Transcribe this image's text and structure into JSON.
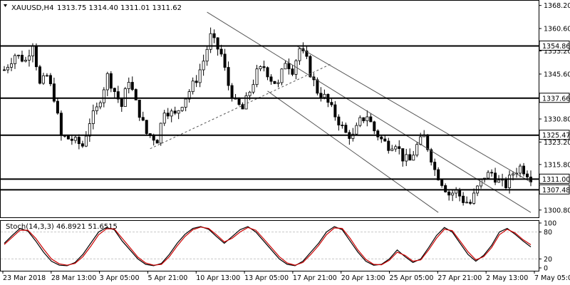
{
  "header": {
    "symbol_timeframe": "XAUUSD,H4",
    "ohlc_values": "1313.75 1314.40 1311.01 1311.62"
  },
  "chart_data": [
    {
      "type": "candlestick",
      "title": "XAUUSD,H4",
      "ylim": [
        1298.4,
        1370.0
      ],
      "y_ticks": [
        "1368.20",
        "1360.60",
        "1353.20",
        "1345.60",
        "1338.20",
        "1330.80",
        "1323.20",
        "1315.80",
        "1300.80"
      ],
      "x_ticks": [
        "23 Mar 2018",
        "28 Mar 13:00",
        "3 Apr 05:00",
        "5 Apr 21:00",
        "10 Apr 13:00",
        "13 Apr 05:00",
        "17 Apr 21:00",
        "20 Apr 13:00",
        "25 Apr 05:00",
        "27 Apr 21:00",
        "2 May 13:00",
        "7 May 05:00"
      ],
      "horizontal_levels": [
        {
          "label": "1354.86",
          "value": 1354.86
        },
        {
          "label": "1337.66",
          "value": 1337.66
        },
        {
          "label": "1325.47",
          "value": 1325.47
        },
        {
          "label": "1311.00",
          "value": 1311.0
        },
        {
          "label": "1307.48",
          "value": 1307.48
        }
      ],
      "close_path": [
        [
          0,
          1347
        ],
        [
          3,
          1352
        ],
        [
          6,
          1350
        ],
        [
          8,
          1356
        ],
        [
          10,
          1342
        ],
        [
          12,
          1345
        ],
        [
          14,
          1338
        ],
        [
          16,
          1325
        ],
        [
          19,
          1324
        ],
        [
          22,
          1322
        ],
        [
          24,
          1330
        ],
        [
          26,
          1334
        ],
        [
          29,
          1345
        ],
        [
          31,
          1340
        ],
        [
          33,
          1335
        ],
        [
          35,
          1344
        ],
        [
          37,
          1336
        ],
        [
          40,
          1326
        ],
        [
          43,
          1324
        ],
        [
          45,
          1334
        ],
        [
          48,
          1332
        ],
        [
          50,
          1336
        ],
        [
          52,
          1340
        ],
        [
          54,
          1344
        ],
        [
          56,
          1350
        ],
        [
          58,
          1358
        ],
        [
          59,
          1356
        ],
        [
          61,
          1352
        ],
        [
          63,
          1342
        ],
        [
          65,
          1336
        ],
        [
          67,
          1334
        ],
        [
          69,
          1340
        ],
        [
          71,
          1346
        ],
        [
          73,
          1348
        ],
        [
          75,
          1344
        ],
        [
          77,
          1342
        ],
        [
          79,
          1350
        ],
        [
          81,
          1347
        ],
        [
          83,
          1354
        ],
        [
          85,
          1350
        ],
        [
          86,
          1346
        ],
        [
          88,
          1340
        ],
        [
          90,
          1338
        ],
        [
          92,
          1334
        ],
        [
          94,
          1330
        ],
        [
          96,
          1326
        ],
        [
          98,
          1325
        ],
        [
          100,
          1330
        ],
        [
          102,
          1332
        ],
        [
          104,
          1327
        ],
        [
          106,
          1324
        ],
        [
          108,
          1322
        ],
        [
          110,
          1323
        ],
        [
          112,
          1318
        ],
        [
          114,
          1317
        ],
        [
          116,
          1322
        ],
        [
          118,
          1325
        ],
        [
          120,
          1318
        ],
        [
          121,
          1314
        ],
        [
          123,
          1310
        ],
        [
          125,
          1306
        ],
        [
          127,
          1307
        ],
        [
          129,
          1304
        ],
        [
          131,
          1303
        ],
        [
          133,
          1308
        ],
        [
          135,
          1312
        ],
        [
          137,
          1313
        ],
        [
          139,
          1310
        ],
        [
          141,
          1309
        ],
        [
          143,
          1313
        ],
        [
          145,
          1315
        ],
        [
          147,
          1313
        ],
        [
          148,
          1311.62
        ]
      ],
      "trendlines": [
        {
          "from": [
            57,
            1366
          ],
          "to": [
            148,
            1300
          ]
        },
        {
          "from": [
            82,
            1355
          ],
          "to": [
            148,
            1310
          ]
        },
        {
          "from": [
            74,
            1340
          ],
          "to": [
            122,
            1300
          ]
        },
        {
          "from": [
            41,
            1321
          ],
          "to": [
            92,
            1349
          ]
        }
      ]
    },
    {
      "type": "line",
      "title": "Stoch(14,3,3) 46.8921 51.6515",
      "ylim": [
        0,
        100
      ],
      "y_ticks": [
        "100",
        "80",
        "20",
        "0"
      ],
      "series": [
        {
          "name": "main",
          "color": "#000000",
          "values": [
            55,
            72,
            88,
            82,
            60,
            35,
            15,
            6,
            5,
            12,
            30,
            55,
            80,
            90,
            85,
            60,
            40,
            20,
            8,
            5,
            10,
            30,
            55,
            75,
            88,
            92,
            86,
            70,
            55,
            70,
            85,
            92,
            80,
            60,
            40,
            20,
            8,
            5,
            15,
            35,
            55,
            80,
            92,
            85,
            60,
            35,
            15,
            6,
            8,
            20,
            40,
            25,
            12,
            20,
            45,
            72,
            90,
            80,
            55,
            30,
            15,
            28,
            50,
            80,
            88,
            75,
            60,
            46.89
          ]
        },
        {
          "name": "signal",
          "color": "#cc0000",
          "values": [
            52,
            68,
            84,
            84,
            66,
            42,
            20,
            9,
            6,
            10,
            25,
            48,
            74,
            87,
            87,
            66,
            45,
            24,
            11,
            6,
            8,
            25,
            49,
            70,
            85,
            91,
            88,
            74,
            58,
            66,
            80,
            90,
            84,
            65,
            45,
            25,
            11,
            6,
            12,
            30,
            50,
            74,
            89,
            88,
            66,
            40,
            19,
            8,
            7,
            17,
            35,
            28,
            15,
            18,
            40,
            66,
            86,
            83,
            60,
            36,
            18,
            25,
            45,
            74,
            86,
            78,
            63,
            51.65
          ]
        }
      ]
    }
  ]
}
